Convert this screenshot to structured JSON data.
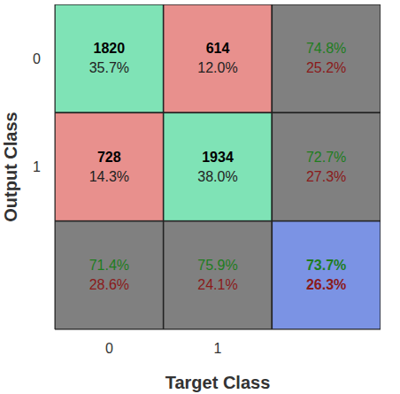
{
  "chart_data": {
    "type": "heatmap",
    "x_label": "Target Class",
    "y_label": "Output Class",
    "categories": [
      "0",
      "1"
    ],
    "cells": {
      "values": [
        [
          1820,
          614
        ],
        [
          728,
          1934
        ]
      ],
      "percent": [
        [
          35.7,
          12.0
        ],
        [
          14.3,
          38.0
        ]
      ],
      "percent_labels": [
        [
          "35.7%",
          "12.0%"
        ],
        [
          "14.3%",
          "38.0%"
        ]
      ]
    },
    "row_summary": {
      "correct": [
        74.8,
        72.7
      ],
      "correct_labels": [
        "74.8%",
        "72.7%"
      ],
      "incorrect": [
        25.2,
        27.3
      ],
      "incorrect_labels": [
        "25.2%",
        "27.3%"
      ]
    },
    "column_summary": {
      "correct": [
        71.4,
        75.9
      ],
      "correct_labels": [
        "71.4%",
        "75.9%"
      ],
      "incorrect": [
        28.6,
        24.1
      ],
      "incorrect_labels": [
        "28.6%",
        "24.1%"
      ]
    },
    "overall": {
      "correct": 73.7,
      "correct_label": "73.7%",
      "incorrect": 26.3,
      "incorrect_label": "26.3%"
    }
  }
}
